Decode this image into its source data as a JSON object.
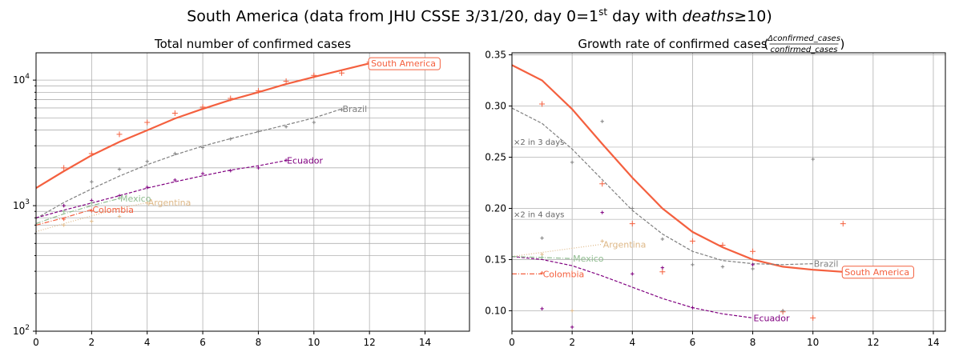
{
  "figure": {
    "title_main": "South America (data from JHU CSSE 3/31/20, day 0=1",
    "title_sup": "st",
    "title_tail": " day with ",
    "title_italic": "deaths",
    "title_end": "≥10)"
  },
  "chart_data": [
    {
      "type": "line",
      "title": "Total number of confirmed cases",
      "xlabel": "",
      "ylabel": "",
      "y_scale": "log",
      "xlim": [
        0,
        15.6
      ],
      "ylim": [
        100,
        16500
      ],
      "x_ticks": [
        0,
        2,
        4,
        6,
        8,
        10,
        12,
        14
      ],
      "y_tick_labels": [
        {
          "value": 100,
          "base": "10",
          "exp": "2"
        },
        {
          "value": 1000,
          "base": "10",
          "exp": "3"
        },
        {
          "value": 10000,
          "base": "10",
          "exp": "4"
        }
      ],
      "grid": true,
      "series": [
        {
          "name": "South America",
          "color": "#f4603f",
          "style": "solid",
          "label_boxed": true,
          "line": [
            [
              0,
              1380
            ],
            [
              1,
              1880
            ],
            [
              2,
              2520
            ],
            [
              3,
              3220
            ],
            [
              4,
              3980
            ],
            [
              5,
              4950
            ],
            [
              6,
              5900
            ],
            [
              7,
              6950
            ],
            [
              8,
              8000
            ],
            [
              9,
              9300
            ],
            [
              10,
              10600
            ],
            [
              11,
              12000
            ],
            [
              12,
              13600
            ]
          ],
          "points": [
            [
              1,
              2000
            ],
            [
              2,
              2600
            ],
            [
              3,
              3700
            ],
            [
              4,
              4600
            ],
            [
              5,
              5450
            ],
            [
              6,
              6100
            ],
            [
              7,
              7150
            ],
            [
              8,
              8200
            ],
            [
              9,
              9800
            ],
            [
              10,
              10900
            ],
            [
              11,
              11400
            ],
            [
              12,
              13900
            ]
          ]
        },
        {
          "name": "Brazil",
          "color": "#808080",
          "style": "dashed",
          "line": [
            [
              0,
              790
            ],
            [
              1,
              1060
            ],
            [
              2,
              1360
            ],
            [
              3,
              1720
            ],
            [
              4,
              2120
            ],
            [
              5,
              2540
            ],
            [
              6,
              2980
            ],
            [
              7,
              3420
            ],
            [
              8,
              3880
            ],
            [
              9,
              4400
            ],
            [
              10,
              5000
            ],
            [
              11,
              5900
            ]
          ],
          "points": [
            [
              1,
              1000
            ],
            [
              2,
              1550
            ],
            [
              3,
              1950
            ],
            [
              4,
              2250
            ],
            [
              5,
              2600
            ],
            [
              6,
              2900
            ],
            [
              7,
              3400
            ],
            [
              8,
              3900
            ],
            [
              9,
              4250
            ],
            [
              10,
              4600
            ],
            [
              11,
              5800
            ]
          ]
        },
        {
          "name": "Ecuador",
          "color": "#800080",
          "style": "dashed",
          "line": [
            [
              0,
              800
            ],
            [
              1,
              920
            ],
            [
              2,
              1050
            ],
            [
              3,
              1200
            ],
            [
              4,
              1380
            ],
            [
              5,
              1550
            ],
            [
              6,
              1730
            ],
            [
              7,
              1920
            ],
            [
              8,
              2080
            ],
            [
              9,
              2290
            ]
          ],
          "points": [
            [
              1,
              1000
            ],
            [
              2,
              1100
            ],
            [
              3,
              1200
            ],
            [
              4,
              1400
            ],
            [
              5,
              1600
            ],
            [
              6,
              1800
            ],
            [
              7,
              1900
            ],
            [
              8,
              2000
            ],
            [
              9,
              2300
            ]
          ]
        },
        {
          "name": "Mexico",
          "color": "#8fbc8f",
          "style": "dashdot",
          "line": [
            [
              0,
              720
            ],
            [
              1,
              860
            ],
            [
              2,
              1000
            ],
            [
              3,
              1140
            ]
          ],
          "points": [
            [
              1,
              900
            ],
            [
              2,
              1050
            ],
            [
              3,
              1150
            ]
          ]
        },
        {
          "name": "Argentina",
          "color": "#deb887",
          "style": "dotted",
          "line": [
            [
              0,
              620
            ],
            [
              1,
              720
            ],
            [
              2,
              830
            ],
            [
              3,
              950
            ],
            [
              4,
              1060
            ]
          ],
          "points": [
            [
              1,
              700
            ],
            [
              2,
              750
            ],
            [
              3,
              820
            ],
            [
              4,
              1050
            ]
          ]
        },
        {
          "name": "Colombia",
          "color": "#f4603f",
          "style": "dashdot",
          "line": [
            [
              0,
              700
            ],
            [
              1,
              800
            ],
            [
              2,
              930
            ]
          ],
          "points": [
            [
              1,
              780
            ],
            [
              2,
              910
            ]
          ]
        }
      ]
    },
    {
      "type": "line",
      "title": "Growth rate of confirmed cases",
      "title_fraction_num": "Δconfirmed_cases",
      "title_fraction_den": "confirmed_cases",
      "xlabel": "",
      "ylabel": "",
      "xlim": [
        0,
        14.4
      ],
      "ylim": [
        0.08,
        0.352
      ],
      "x_ticks": [
        0,
        2,
        4,
        6,
        8,
        10,
        12,
        14
      ],
      "y_ticks": [
        "0.10",
        "0.15",
        "0.20",
        "0.25",
        "0.30",
        "0.35"
      ],
      "grid": true,
      "reference_lines": [
        {
          "label": "×2 in 3 days",
          "value": 0.2599
        },
        {
          "label": "×2 in 4 days",
          "value": 0.1892
        }
      ],
      "series": [
        {
          "name": "South America",
          "color": "#f4603f",
          "style": "solid",
          "label_boxed": true,
          "line": [
            [
              0,
              0.34
            ],
            [
              1,
              0.325
            ],
            [
              2,
              0.297
            ],
            [
              3,
              0.263
            ],
            [
              4,
              0.23
            ],
            [
              5,
              0.2
            ],
            [
              6,
              0.177
            ],
            [
              7,
              0.162
            ],
            [
              8,
              0.15
            ],
            [
              9,
              0.143
            ],
            [
              10,
              0.14
            ],
            [
              11,
              0.138
            ]
          ],
          "points": [
            [
              1,
              0.302
            ],
            [
              3,
              0.224
            ],
            [
              4,
              0.185
            ],
            [
              5,
              0.138
            ],
            [
              6,
              0.168
            ],
            [
              7,
              0.164
            ],
            [
              8,
              0.158
            ],
            [
              9,
              0.099
            ],
            [
              10,
              0.093
            ],
            [
              11,
              0.185
            ]
          ]
        },
        {
          "name": "Brazil",
          "color": "#808080",
          "style": "dashed",
          "line": [
            [
              0,
              0.298
            ],
            [
              1,
              0.283
            ],
            [
              2,
              0.258
            ],
            [
              3,
              0.228
            ],
            [
              4,
              0.198
            ],
            [
              5,
              0.175
            ],
            [
              6,
              0.158
            ],
            [
              7,
              0.149
            ],
            [
              8,
              0.146
            ],
            [
              9,
              0.145
            ],
            [
              10,
              0.146
            ]
          ],
          "points": [
            [
              1,
              0.171
            ],
            [
              2,
              0.245
            ],
            [
              3,
              0.285
            ],
            [
              4,
              0.2
            ],
            [
              5,
              0.17
            ],
            [
              6,
              0.145
            ],
            [
              7,
              0.143
            ],
            [
              8,
              0.141
            ],
            [
              9,
              0.1
            ],
            [
              10,
              0.248
            ]
          ]
        },
        {
          "name": "Ecuador",
          "color": "#800080",
          "style": "dashed",
          "line": [
            [
              0,
              0.153
            ],
            [
              1,
              0.15
            ],
            [
              2,
              0.144
            ],
            [
              3,
              0.134
            ],
            [
              4,
              0.123
            ],
            [
              5,
              0.112
            ],
            [
              6,
              0.103
            ],
            [
              7,
              0.097
            ],
            [
              8,
              0.093
            ]
          ],
          "points": [
            [
              1,
              0.102
            ],
            [
              2,
              0.084
            ],
            [
              3,
              0.196
            ],
            [
              4,
              0.136
            ],
            [
              5,
              0.142
            ],
            [
              6,
              0.103
            ],
            [
              8,
              0.145
            ]
          ]
        },
        {
          "name": "Argentina",
          "color": "#deb887",
          "style": "dotted",
          "line": [
            [
              0,
              0.153
            ],
            [
              1,
              0.157
            ],
            [
              2,
              0.161
            ],
            [
              3,
              0.165
            ]
          ],
          "points": [
            [
              1,
              0.155
            ],
            [
              2,
              0.1
            ],
            [
              3,
              0.168
            ]
          ]
        },
        {
          "name": "Mexico",
          "color": "#8fbc8f",
          "style": "dashdot",
          "line": [
            [
              0,
              0.153
            ],
            [
              1,
              0.152
            ],
            [
              2,
              0.151
            ]
          ],
          "points": [
            [
              1,
              0.152
            ]
          ]
        },
        {
          "name": "Colombia",
          "color": "#f4603f",
          "style": "dashdot",
          "line": [
            [
              0,
              0.136
            ],
            [
              1,
              0.136
            ]
          ],
          "points": [
            [
              1,
              0.137
            ]
          ]
        }
      ]
    }
  ]
}
